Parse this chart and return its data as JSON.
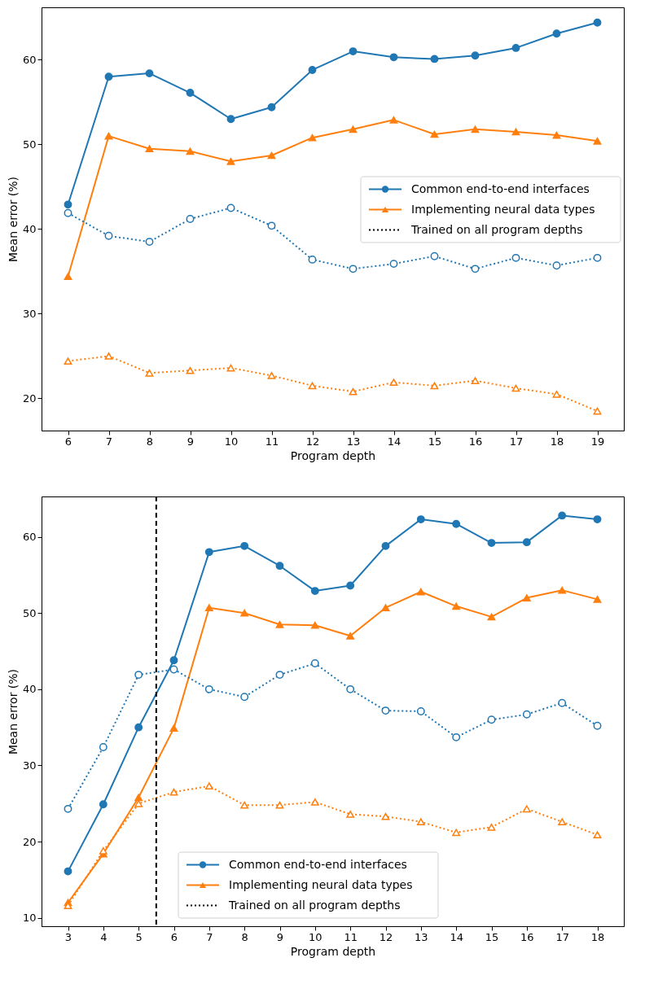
{
  "chart_data": [
    {
      "type": "line",
      "xlabel": "Program depth",
      "ylabel": "Mean error (%)",
      "x": [
        6,
        7,
        8,
        9,
        10,
        11,
        12,
        13,
        14,
        15,
        16,
        17,
        18,
        19
      ],
      "xlim": [
        5.35,
        19.65
      ],
      "xticks": [
        6,
        7,
        8,
        9,
        10,
        11,
        12,
        13,
        14,
        15,
        16,
        17,
        18,
        19
      ],
      "ylim": [
        16.2,
        66.2
      ],
      "yticks": [
        20,
        30,
        40,
        50,
        60
      ],
      "legend": "right",
      "grid": false,
      "annotations": [
        "Trained on all program depths"
      ],
      "series": [
        {
          "name": "Common end-to-end interfaces",
          "color": "#1f77b4",
          "marker": "circle",
          "line_style": "solid",
          "values": [
            42.9,
            58.0,
            58.4,
            56.1,
            53.0,
            54.4,
            58.8,
            61.0,
            60.3,
            60.1,
            60.5,
            61.4,
            63.1,
            64.4
          ]
        },
        {
          "name": "Implementing neural data types",
          "color": "#ff7f0e",
          "marker": "triangle",
          "line_style": "solid",
          "values": [
            34.4,
            51.0,
            49.5,
            49.2,
            48.0,
            48.7,
            50.8,
            51.8,
            52.9,
            51.2,
            51.8,
            51.5,
            51.1,
            50.4
          ]
        },
        {
          "color": "#1f77b4",
          "marker": "circle",
          "line_style": "dotted",
          "values": [
            41.9,
            39.2,
            38.5,
            41.2,
            42.5,
            40.4,
            36.4,
            35.3,
            35.9,
            36.8,
            35.3,
            36.6,
            35.7,
            36.6
          ]
        },
        {
          "color": "#ff7f0e",
          "marker": "triangle",
          "line_style": "dotted",
          "values": [
            24.4,
            25.0,
            23.0,
            23.3,
            23.6,
            22.7,
            21.5,
            20.8,
            21.9,
            21.5,
            22.1,
            21.2,
            20.5,
            18.5
          ]
        }
      ]
    },
    {
      "type": "line",
      "xlabel": "Program depth",
      "ylabel": "Mean error (%)",
      "x": [
        3,
        4,
        5,
        6,
        7,
        8,
        9,
        10,
        11,
        12,
        13,
        14,
        15,
        16,
        17,
        18
      ],
      "xlim": [
        2.25,
        18.75
      ],
      "xticks": [
        3,
        4,
        5,
        6,
        7,
        8,
        9,
        10,
        11,
        12,
        13,
        14,
        15,
        16,
        17,
        18
      ],
      "ylim": [
        8.9,
        65.3
      ],
      "yticks": [
        10,
        20,
        30,
        40,
        50,
        60
      ],
      "legend": "bottom",
      "grid": false,
      "annotations": [
        "Trained on all program depths"
      ],
      "ref_lines": [
        {
          "axis": "x",
          "value": 5.5,
          "color": "#000000",
          "line_style": "dashed"
        }
      ],
      "series": [
        {
          "name": "Common end-to-end interfaces",
          "color": "#1f77b4",
          "marker": "circle",
          "line_style": "solid",
          "values": [
            16.1,
            24.9,
            35.0,
            43.8,
            58.0,
            58.8,
            56.2,
            52.9,
            53.6,
            58.8,
            62.3,
            61.7,
            59.2,
            59.3,
            62.8,
            62.3
          ]
        },
        {
          "name": "Implementing neural data types",
          "color": "#ff7f0e",
          "marker": "triangle",
          "line_style": "solid",
          "values": [
            12.0,
            18.4,
            25.8,
            34.9,
            50.7,
            50.0,
            48.5,
            48.4,
            47.0,
            50.7,
            52.8,
            50.9,
            49.5,
            52.0,
            53.0,
            51.8
          ]
        },
        {
          "color": "#1f77b4",
          "marker": "circle",
          "line_style": "dotted",
          "values": [
            24.3,
            32.4,
            41.9,
            42.6,
            40.0,
            39.0,
            41.9,
            43.4,
            40.0,
            37.2,
            37.1,
            33.7,
            36.0,
            36.7,
            38.2,
            35.2
          ]
        },
        {
          "color": "#ff7f0e",
          "marker": "triangle",
          "line_style": "dotted",
          "values": [
            11.6,
            18.8,
            25.0,
            26.5,
            27.3,
            24.8,
            24.8,
            25.2,
            23.6,
            23.3,
            22.6,
            21.2,
            21.9,
            24.3,
            22.6,
            20.9
          ]
        }
      ]
    }
  ]
}
